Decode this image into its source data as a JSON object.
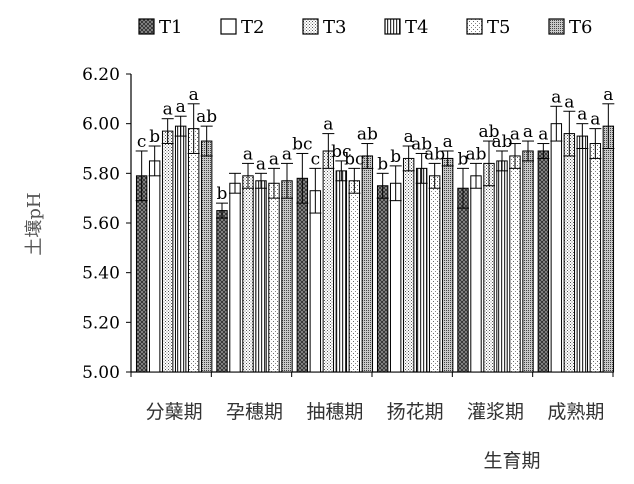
{
  "chart_data": {
    "type": "bar",
    "title": "",
    "xlabel": "生育期",
    "ylabel": "土壤pH",
    "ylim": [
      5.0,
      6.2
    ],
    "yticks": [
      "5.00",
      "5.20",
      "5.40",
      "5.60",
      "5.80",
      "6.00",
      "6.20"
    ],
    "grid": false,
    "legend_position": "top",
    "categories": [
      "分蘖期",
      "孕穗期",
      "抽穗期",
      "扬花期",
      "灌浆期",
      "成熟期"
    ],
    "series": [
      {
        "name": "T1",
        "pattern": "dark-crosshatch",
        "values": [
          5.79,
          5.65,
          5.78,
          5.75,
          5.74,
          5.89
        ],
        "errors": [
          0.1,
          0.03,
          0.1,
          0.05,
          0.08,
          0.03
        ],
        "labels": [
          "c",
          "b",
          "bc",
          "b",
          "b",
          "a"
        ]
      },
      {
        "name": "T2",
        "pattern": "white",
        "values": [
          5.85,
          5.76,
          5.73,
          5.76,
          5.79,
          6.0
        ],
        "errors": [
          0.06,
          0.04,
          0.09,
          0.07,
          0.05,
          0.07
        ],
        "labels": [
          "b",
          "",
          "c",
          "b",
          "ab",
          "a"
        ]
      },
      {
        "name": "T3",
        "pattern": "light-dots",
        "values": [
          5.97,
          5.79,
          5.89,
          5.86,
          5.84,
          5.96
        ],
        "errors": [
          0.05,
          0.05,
          0.07,
          0.05,
          0.09,
          0.09
        ],
        "labels": [
          "a",
          "a",
          "a",
          "a",
          "ab",
          "a"
        ]
      },
      {
        "name": "T4",
        "pattern": "vertical-lines",
        "values": [
          5.99,
          5.77,
          5.81,
          5.82,
          5.85,
          5.95
        ],
        "errors": [
          0.04,
          0.03,
          0.04,
          0.06,
          0.04,
          0.05
        ],
        "labels": [
          "a",
          "a",
          "bc",
          "ab",
          "ab",
          "a"
        ]
      },
      {
        "name": "T5",
        "pattern": "sparse-dots",
        "values": [
          5.98,
          5.76,
          5.77,
          5.79,
          5.87,
          5.92
        ],
        "errors": [
          0.1,
          0.06,
          0.05,
          0.05,
          0.05,
          0.06
        ],
        "labels": [
          "a",
          "a",
          "bc",
          "ab",
          "a",
          "a"
        ]
      },
      {
        "name": "T6",
        "pattern": "dense-dots",
        "values": [
          5.93,
          5.77,
          5.87,
          5.86,
          5.89,
          5.99
        ],
        "errors": [
          0.06,
          0.07,
          0.05,
          0.03,
          0.04,
          0.09
        ],
        "labels": [
          "ab",
          "a",
          "ab",
          "a",
          "a",
          "a"
        ]
      }
    ]
  }
}
